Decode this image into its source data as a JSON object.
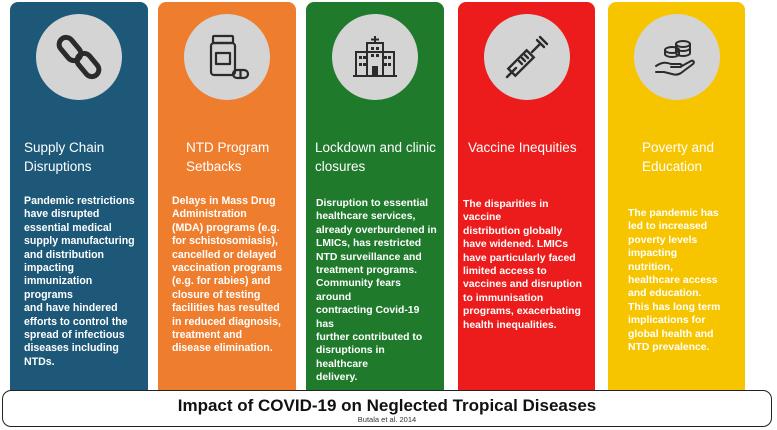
{
  "colors": {
    "card1": "#1d5879",
    "card2": "#ef7d2e",
    "card3": "#1f7a2c",
    "card4": "#ec1c1c",
    "card5": "#f7c500",
    "icon_circle": "#d4d4d4",
    "icon_stroke": "#2b2b2b"
  },
  "cards": [
    {
      "icon": "chain-link-icon",
      "title": "Supply Chain\nDisruptions",
      "body": "Pandemic restrictions\nhave disrupted\nessential medical\nsupply manufacturing\nand distribution\nimpacting\nimmunization programs\nand have hindered\nefforts to control the\nspread of infectious\ndiseases including\nNTDs."
    },
    {
      "icon": "medicine-bottle-icon",
      "title": "NTD Program\nSetbacks",
      "body": "Delays in Mass Drug\nAdministration\n(MDA) programs (e.g.\nfor schistosomiasis),\ncancelled or delayed\nvaccination programs\n(e.g. for rabies) and\nclosure of testing\nfacilities has resulted\nin reduced diagnosis,\ntreatment and\ndisease elimination."
    },
    {
      "icon": "hospital-building-icon",
      "title": "Lockdown and clinic\nclosures",
      "body": " Disruption to essential\nhealthcare services,\nalready overburdened in\nLMICs, has restricted\nNTD surveillance and\ntreatment programs.\nCommunity fears around\ncontracting Covid-19 has\nfurther contributed to\ndisruptions in healthcare\ndelivery."
    },
    {
      "icon": "syringe-icon",
      "title": "Vaccine Inequities",
      "body": "The disparities in vaccine\ndistribution globally\nhave widened. LMICs\nhave particularly faced\nlimited access to\nvaccines and disruption\nto immunisation\nprograms, exacerbating\nhealth inequalities."
    },
    {
      "icon": "hand-coins-icon",
      "title": "Poverty and\nEducation",
      "body": "The pandemic has\nled to increased\npoverty levels\nimpacting\nnutrition,\nhealthcare access\nand education.\nThis has long term\nimplications for\nglobal health and\nNTD prevalence."
    }
  ],
  "footer": {
    "title": "Impact of COVID-19 on Neglected Tropical Diseases",
    "citation": "Butala et al. 2014"
  }
}
